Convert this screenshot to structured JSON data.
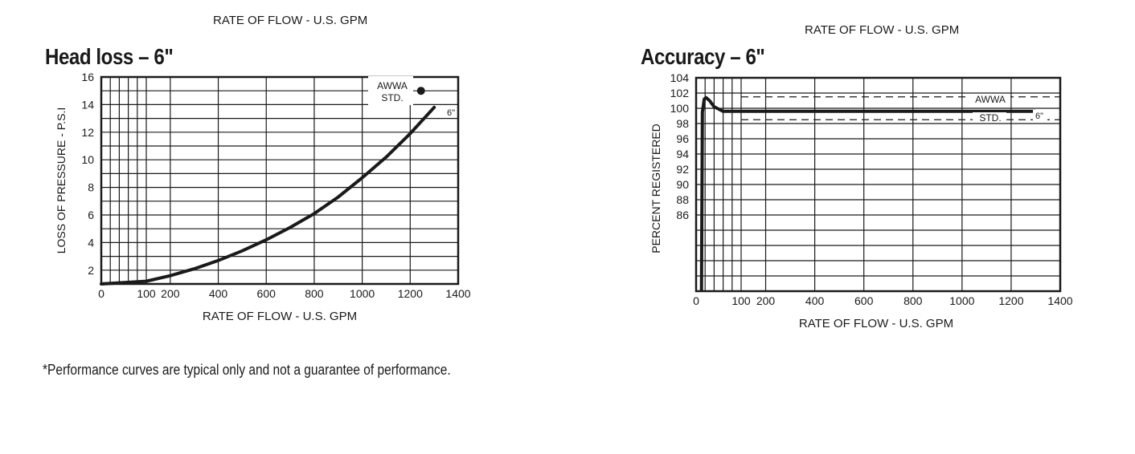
{
  "header": {
    "left_caption": "RATE OF FLOW - U.S. GPM",
    "right_caption": "RATE OF FLOW - U.S. GPM"
  },
  "footnote": "*Performance curves are typical only and not a guarantee of performance.",
  "chart_data": [
    {
      "type": "line",
      "title": "Head loss – 6\"",
      "xlabel": "RATE OF FLOW - U.S. GPM",
      "ylabel": "LOSS OF PRESSURE - P.S.I",
      "xlim": [
        0,
        1400
      ],
      "ylim": [
        1,
        16
      ],
      "x_ticks": [
        "0",
        "100",
        "200",
        "400",
        "600",
        "800",
        "1000",
        "1200",
        "1400"
      ],
      "y_ticks": [
        "2",
        "4",
        "6",
        "8",
        "10",
        "12",
        "14",
        "16"
      ],
      "grid": true,
      "series": [
        {
          "name": "6\"",
          "x": [
            0,
            100,
            200,
            300,
            400,
            500,
            600,
            700,
            800,
            900,
            1000,
            1100,
            1200,
            1300
          ],
          "y": [
            1.0,
            1.2,
            1.6,
            2.1,
            2.7,
            3.4,
            4.2,
            5.1,
            6.1,
            7.3,
            8.7,
            10.2,
            11.9,
            13.8
          ]
        }
      ],
      "annotations": [
        {
          "text": "AWWA",
          "x": 1245,
          "y": 15
        },
        {
          "text": "STD.",
          "x": 1245,
          "y": 15
        },
        {
          "text": "6\"",
          "x": 1300,
          "y": 13.8
        }
      ],
      "awwa_std_point": {
        "x": 1245,
        "y": 15
      }
    },
    {
      "type": "line",
      "title": "Accuracy – 6\"",
      "xlabel": "RATE OF FLOW - U.S. GPM",
      "ylabel": "PERCENT REGISTERED",
      "xlim": [
        0,
        1400
      ],
      "ylim": [
        76,
        104
      ],
      "x_ticks": [
        "0",
        "100",
        "200",
        "400",
        "600",
        "800",
        "1000",
        "1200",
        "1400"
      ],
      "y_ticks": [
        "86",
        "88",
        "90",
        "92",
        "94",
        "96",
        "98",
        "100",
        "102",
        "104"
      ],
      "grid": true,
      "awwa_band": [
        98.5,
        101.5
      ],
      "band_labels": [
        "AWWA",
        "STD."
      ],
      "series": [
        {
          "name": "6\"",
          "x": [
            12,
            14,
            18,
            22,
            30,
            40,
            60,
            100,
            200,
            600,
            1000,
            1300
          ],
          "y": [
            76,
            99.5,
            101.2,
            101.4,
            101.0,
            100.2,
            99.6,
            99.6,
            99.6,
            99.6,
            99.6,
            99.6
          ]
        }
      ]
    }
  ]
}
